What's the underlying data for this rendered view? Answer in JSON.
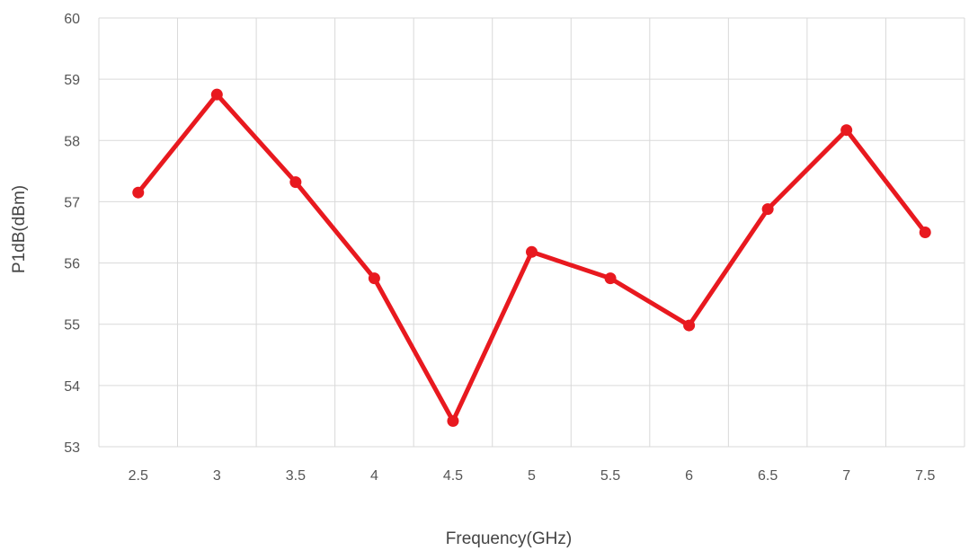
{
  "chart_data": {
    "type": "line",
    "title": "",
    "xlabel": "Frequency(GHz)",
    "ylabel": "P1dB(dBm)",
    "categories": [
      "2.5",
      "3",
      "3.5",
      "4",
      "4.5",
      "5",
      "5.5",
      "6",
      "6.5",
      "7",
      "7.5"
    ],
    "y_ticks": [
      "53",
      "54",
      "55",
      "56",
      "57",
      "58",
      "59",
      "60"
    ],
    "ylim": [
      53,
      60
    ],
    "grid": true,
    "legend": "none",
    "series": [
      {
        "values": [
          57.15,
          58.75,
          57.32,
          55.75,
          53.42,
          56.18,
          55.75,
          54.98,
          56.88,
          58.17,
          56.5
        ],
        "color": "#e8191f"
      }
    ]
  }
}
